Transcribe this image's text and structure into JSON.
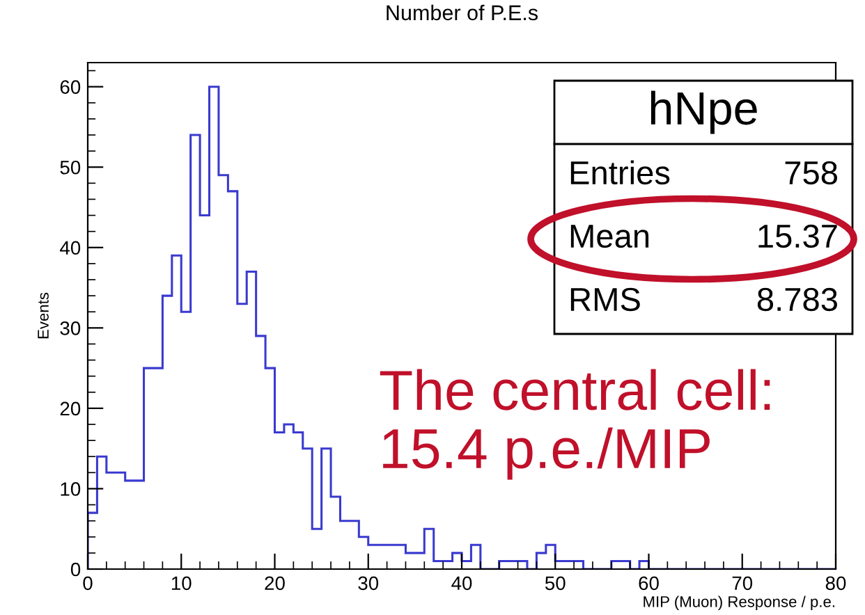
{
  "chart_data": {
    "type": "histogram",
    "title": "Number of P.E.s",
    "xlabel": "MIP (Muon) Response / p.e.",
    "ylabel": "Events",
    "bins": [
      0,
      1,
      2,
      3,
      4,
      5,
      6,
      7,
      8,
      9,
      10,
      11,
      12,
      13,
      14,
      15,
      16,
      17,
      18,
      19,
      20,
      21,
      22,
      23,
      24,
      25,
      26,
      27,
      28,
      29,
      30,
      31,
      32,
      33,
      34,
      35,
      36,
      37,
      38,
      39,
      40,
      41,
      42,
      43,
      44,
      45,
      46,
      47,
      48,
      49,
      50,
      51,
      52,
      53,
      54,
      55,
      56,
      57,
      58,
      59,
      60,
      61,
      62,
      63,
      64,
      65,
      66,
      67,
      68,
      69,
      70,
      71,
      72,
      73,
      74,
      75,
      76,
      77,
      78,
      79,
      80
    ],
    "values": [
      7,
      14,
      12,
      12,
      11,
      11,
      25,
      25,
      34,
      39,
      32,
      54,
      44,
      60,
      49,
      47,
      33,
      37,
      29,
      25,
      17,
      18,
      17,
      15,
      5,
      15,
      9,
      6,
      6,
      4,
      3,
      3,
      3,
      3,
      2,
      2,
      5,
      1,
      1,
      2,
      1,
      3,
      0,
      0,
      1,
      1,
      1,
      0,
      2,
      3,
      1,
      1,
      1,
      0,
      0,
      0,
      1,
      1,
      0,
      1,
      0,
      0,
      0,
      0,
      0,
      0,
      0,
      0,
      0,
      0,
      0,
      0,
      0,
      0,
      0,
      0,
      0,
      0,
      0,
      0
    ],
    "color": "#3a3ad0",
    "xlim": [
      0,
      80
    ],
    "xticks": [
      0,
      10,
      20,
      30,
      40,
      50,
      60,
      70,
      80
    ],
    "ylim": [
      0,
      63
    ],
    "yticks": [
      0,
      10,
      20,
      30,
      40,
      50,
      60
    ],
    "grid": false,
    "legend": false,
    "annotations": [
      "hNpe",
      "Entries",
      "758",
      "Mean",
      "15.37",
      "RMS",
      "8.783",
      "The central cell:\n15.4 p.e./MIP"
    ]
  }
}
